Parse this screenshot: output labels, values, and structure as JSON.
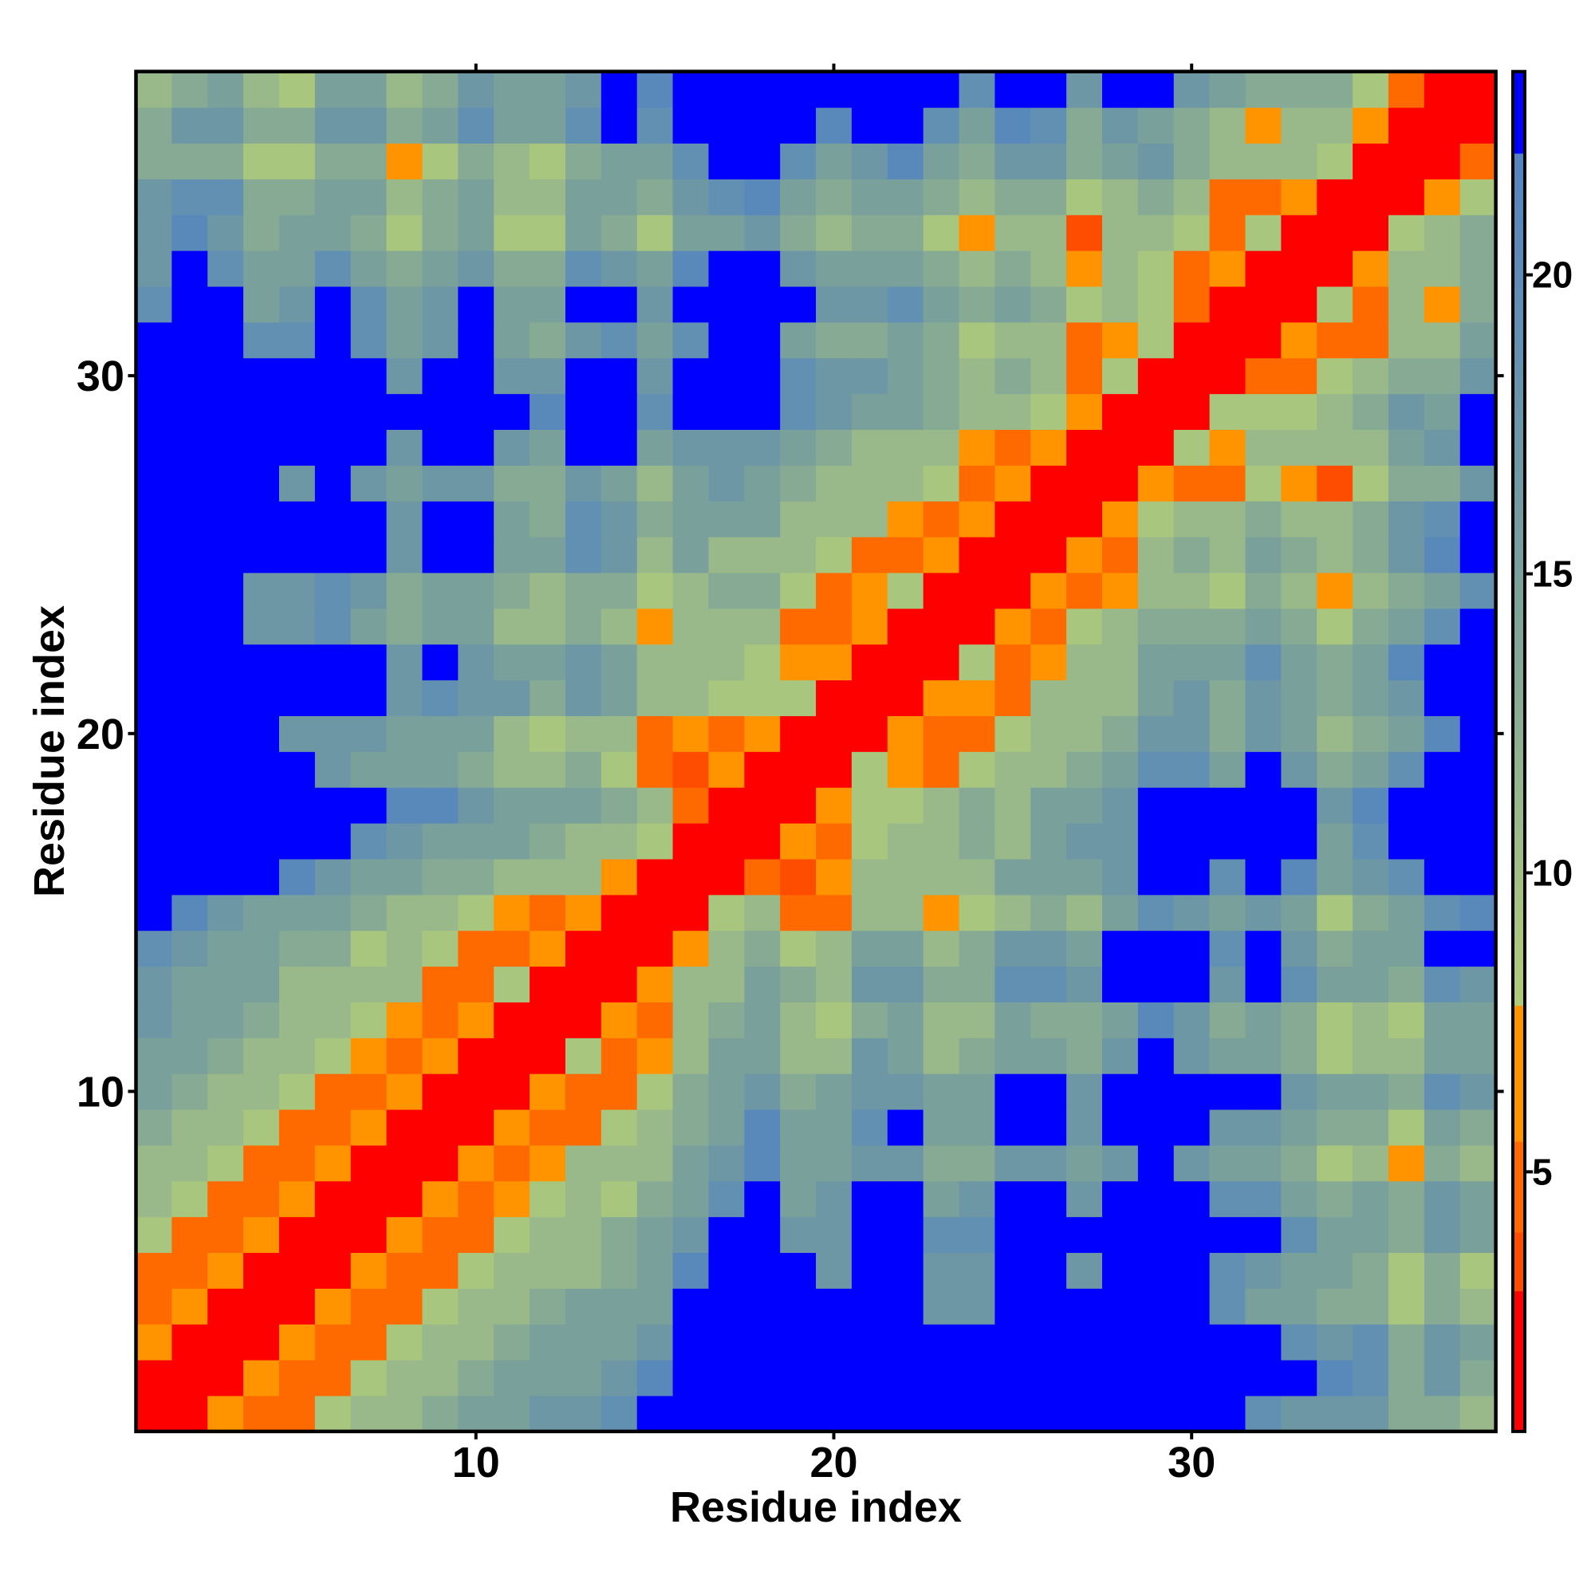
{
  "chart_data": {
    "type": "heatmap",
    "title": "",
    "xlabel": "Residue index",
    "ylabel": "Residue index",
    "n_residues": 38,
    "symmetric": true,
    "matrix_format": "upper triangle: rows[i] holds values for residue y=i+1 at x = y..38",
    "x_ticks": [
      10,
      20,
      30
    ],
    "x_tick_labels": [
      "10",
      "20",
      "30"
    ],
    "y_ticks": [
      10,
      20,
      30
    ],
    "y_tick_labels": [
      "10",
      "20",
      "30"
    ],
    "colorbar": {
      "range": [
        0.66,
        23.4
      ],
      "ticks": [
        5,
        10,
        15,
        20
      ],
      "tick_labels": [
        "5",
        "10",
        "15",
        "20"
      ],
      "colors": {
        "red": "#ff0000",
        "red_orange": "#ff4d00",
        "dark_orange": "#ff6a00",
        "orange": "#ff9400",
        "low_gradient": "#a9c67e",
        "high_gradient": "#5686be",
        "saturated": "#0000ff"
      }
    },
    "rows": [
      [
        2,
        2,
        6.5,
        4.5,
        4.5,
        9,
        11,
        11,
        13,
        15,
        15,
        17,
        17,
        19,
        24,
        24,
        24,
        24,
        24,
        24,
        24,
        24,
        24,
        24,
        24,
        24,
        24,
        24,
        24,
        24,
        24,
        19,
        17,
        17,
        17,
        13,
        13,
        11
      ],
      [
        2,
        2,
        6.5,
        4.5,
        4.5,
        9,
        11,
        11,
        13,
        15,
        15,
        15,
        17,
        21,
        24,
        24,
        24,
        24,
        24,
        24,
        24,
        24,
        24,
        24,
        24,
        24,
        24,
        24,
        24,
        24,
        24,
        24,
        21,
        19,
        13,
        17,
        13
      ],
      [
        2,
        2,
        6.5,
        4.5,
        4.5,
        9,
        11,
        11,
        13,
        15,
        15,
        15,
        17,
        24,
        24,
        24,
        24,
        24,
        24,
        24,
        24,
        24,
        24,
        24,
        24,
        24,
        24,
        24,
        24,
        24,
        19,
        17,
        19,
        13,
        17,
        15
      ],
      [
        2,
        2,
        6.5,
        4.5,
        4.5,
        9,
        11,
        11,
        13,
        15,
        15,
        15,
        24,
        24,
        24,
        24,
        24,
        24,
        24,
        17,
        17,
        24,
        24,
        24,
        24,
        24,
        24,
        19,
        15,
        15,
        13,
        13,
        9,
        13,
        11
      ],
      [
        2,
        2,
        6.5,
        4.5,
        4.5,
        9,
        11,
        11,
        11,
        13,
        15,
        21,
        24,
        24,
        24,
        17,
        24,
        24,
        17,
        17,
        24,
        24,
        17,
        24,
        24,
        24,
        19,
        17,
        15,
        15,
        13,
        9,
        13,
        9
      ],
      [
        2,
        2,
        6.5,
        4.5,
        4.5,
        9,
        11,
        11,
        13,
        15,
        17,
        24,
        24,
        17,
        17,
        24,
        24,
        19,
        19,
        24,
        24,
        24,
        24,
        24,
        24,
        24,
        24,
        19,
        15,
        15,
        13,
        17,
        15
      ],
      [
        2,
        2,
        6.5,
        4.5,
        6.5,
        9,
        11,
        9,
        13,
        15,
        19,
        24,
        15,
        17,
        24,
        24,
        15,
        17,
        24,
        24,
        17,
        24,
        24,
        24,
        19,
        19,
        15,
        13,
        15,
        13,
        17,
        15
      ],
      [
        2,
        2,
        6.5,
        4.5,
        6.5,
        11,
        11,
        11,
        15,
        17,
        21,
        15,
        15,
        17,
        17,
        13,
        13,
        17,
        17,
        15,
        17,
        24,
        17,
        15,
        15,
        13,
        9,
        11,
        6.5,
        13,
        11
      ],
      [
        2,
        2,
        6.5,
        4.5,
        4.5,
        9,
        11,
        13,
        15,
        21,
        15,
        15,
        19,
        24,
        15,
        15,
        24,
        24,
        17,
        24,
        24,
        24,
        17,
        17,
        15,
        13,
        13,
        9,
        15,
        13
      ],
      [
        2,
        2,
        6.5,
        4.5,
        4.5,
        9,
        13,
        15,
        17,
        13,
        15,
        17,
        17,
        15,
        15,
        24,
        24,
        17,
        24,
        24,
        24,
        24,
        24,
        17,
        15,
        15,
        13,
        19,
        17
      ],
      [
        2,
        2,
        9,
        4.5,
        6.5,
        11,
        15,
        15,
        11,
        11,
        17,
        15,
        11,
        13,
        15,
        15,
        13,
        17,
        24,
        17,
        15,
        15,
        13,
        9,
        11,
        11,
        15,
        15
      ],
      [
        2,
        2,
        6.5,
        4.5,
        11,
        13,
        15,
        11,
        9,
        13,
        15,
        11,
        11,
        15,
        13,
        13,
        15,
        21,
        17,
        13,
        15,
        13,
        9,
        11,
        9,
        15,
        15
      ],
      [
        2,
        2,
        6.5,
        11,
        11,
        15,
        13,
        11,
        17,
        17,
        13,
        13,
        19,
        19,
        17,
        24,
        24,
        24,
        17,
        24,
        19,
        15,
        15,
        13,
        19,
        17
      ],
      [
        2,
        2,
        6.5,
        11,
        13,
        9,
        11,
        15,
        15,
        11,
        13,
        17,
        17,
        15,
        24,
        24,
        24,
        19,
        24,
        17,
        13,
        15,
        15,
        24,
        24
      ],
      [
        2,
        2,
        9,
        11,
        4.5,
        4.5,
        11,
        11,
        6.5,
        9,
        11,
        13,
        11,
        15,
        19,
        17,
        15,
        17,
        15,
        9,
        13,
        15,
        19,
        21
      ],
      [
        2,
        2,
        4.5,
        3.5,
        6.5,
        11,
        11,
        11,
        11,
        15,
        15,
        15,
        17,
        24,
        24,
        19,
        24,
        21,
        15,
        17,
        19,
        24,
        24
      ],
      [
        2,
        2,
        6.5,
        4.5,
        9,
        11,
        11,
        13,
        11,
        15,
        17,
        17,
        24,
        24,
        24,
        24,
        24,
        15,
        19,
        24,
        24,
        24
      ],
      [
        2,
        2,
        6.5,
        9,
        9,
        11,
        13,
        11,
        15,
        15,
        17,
        24,
        24,
        24,
        24,
        24,
        17,
        21,
        24,
        24,
        24
      ],
      [
        2,
        2,
        9,
        6.5,
        4.5,
        9,
        11,
        11,
        13,
        15,
        19,
        19,
        15,
        24,
        17,
        13,
        15,
        19,
        24,
        24
      ],
      [
        2,
        2,
        6.5,
        4.5,
        4.5,
        9,
        11,
        11,
        13,
        17,
        17,
        13,
        17,
        15,
        11,
        13,
        15,
        21,
        24
      ],
      [
        2,
        2,
        6.5,
        6.5,
        4.5,
        11,
        11,
        11,
        15,
        17,
        13,
        17,
        15,
        13,
        15,
        17,
        24,
        24
      ],
      [
        2,
        2,
        9,
        4.5,
        6.5,
        11,
        11,
        15,
        15,
        15,
        19,
        15,
        13,
        15,
        21,
        24,
        24
      ],
      [
        2,
        2,
        6.5,
        4.5,
        9,
        11,
        13,
        13,
        13,
        15,
        13,
        9,
        13,
        15,
        19,
        24
      ],
      [
        2,
        2,
        6.5,
        4.5,
        6.5,
        11,
        11,
        9,
        13,
        11,
        6.5,
        11,
        13,
        15,
        19
      ],
      [
        2,
        2,
        6.5,
        4.5,
        11,
        13,
        11,
        15,
        13,
        11,
        13,
        17,
        21,
        24
      ],
      [
        2,
        2,
        6.5,
        9,
        11,
        11,
        13,
        11,
        11,
        13,
        17,
        19,
        24
      ],
      [
        2,
        2,
        6.5,
        4.5,
        4.5,
        9,
        6.5,
        3.5,
        9,
        13,
        13,
        17
      ],
      [
        2,
        2,
        9,
        6.5,
        11,
        11,
        11,
        11,
        15,
        17,
        24
      ],
      [
        2,
        2,
        9,
        9,
        9,
        11,
        13,
        17,
        15,
        24
      ],
      [
        2,
        2,
        4.5,
        4.5,
        9,
        11,
        13,
        13,
        17
      ],
      [
        2,
        2,
        6.5,
        4.5,
        4.5,
        11,
        11,
        15
      ],
      [
        2,
        2,
        9,
        4.5,
        11,
        6.5,
        13
      ],
      [
        2,
        2,
        6.5,
        11,
        11,
        13
      ],
      [
        2,
        2,
        9,
        11,
        13
      ],
      [
        2,
        2,
        6.5,
        9
      ],
      [
        2,
        2,
        4.5
      ],
      [
        2,
        2
      ],
      [
        2
      ]
    ]
  }
}
